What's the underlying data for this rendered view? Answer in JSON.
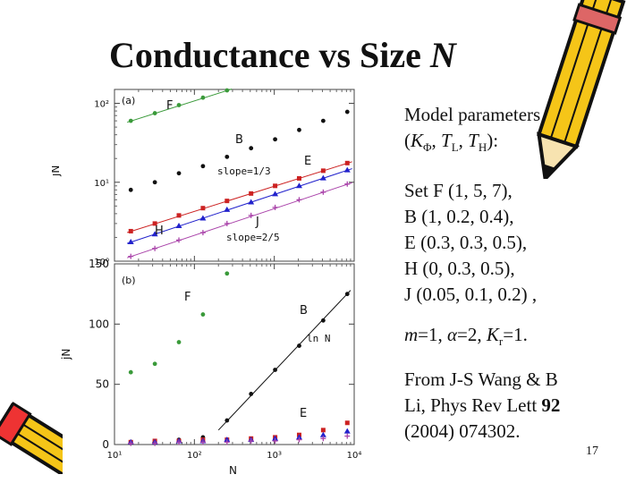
{
  "slide": {
    "title_main": "Conductance vs Size ",
    "title_var": "N",
    "page_number": "17"
  },
  "params": {
    "heading_line1": "Model parameters",
    "heading_line2_prefix": "(",
    "heading_line2_k": "K",
    "heading_line2_phi": "Φ",
    "heading_line2_mid1": ", ",
    "heading_line2_t1": "T",
    "heading_line2_l": "L",
    "heading_line2_mid2": ", ",
    "heading_line2_t2": "T",
    "heading_line2_h": "H",
    "heading_line2_suffix": "):",
    "sets": [
      "Set F (1, 5, 7),",
      "B (1, 0.2, 0.4),",
      "E (0.3, 0.3, 0.5),",
      "H (0, 0.3, 0.5),",
      "J (0.05, 0.1, 0.2) ,"
    ],
    "m_var": "m",
    "m_text": "=1, ",
    "alpha_var": "α",
    "alpha_text": "=2, ",
    "kr_var": "K",
    "kr_sub": "r",
    "kr_text": "=1.",
    "citation_pre": "From J-S Wang & B Li, Phys Rev Lett ",
    "citation_vol": "92",
    "citation_post": " (2004) 074302."
  },
  "chart_data": [
    {
      "panel": "(a)",
      "type": "scatter",
      "scale": "log-log",
      "xlabel": "",
      "ylabel": "jN",
      "xlim": [
        10,
        10000
      ],
      "ylim": [
        1,
        150
      ],
      "ytick_labels": [
        "10⁰",
        "10¹",
        "10²"
      ],
      "annotations": [
        "slope=1/3",
        "slope=2/5"
      ],
      "series": [
        {
          "name": "F",
          "color": "#3a9a3a",
          "marker": "dot",
          "x": [
            16,
            32,
            64,
            128,
            256
          ],
          "y": [
            60,
            75,
            95,
            118,
            146
          ],
          "fit": true
        },
        {
          "name": "B",
          "color": "#111111",
          "marker": "dot",
          "x": [
            16,
            32,
            64,
            128,
            256,
            512,
            1024,
            2048,
            4096,
            8192
          ],
          "y": [
            8,
            10,
            13,
            16,
            21,
            27,
            35,
            46,
            60,
            78
          ],
          "fit": false
        },
        {
          "name": "E",
          "color": "#cc2222",
          "marker": "square",
          "x": [
            16,
            32,
            64,
            128,
            256,
            512,
            1024,
            2048,
            4096,
            8192
          ],
          "y": [
            2.4,
            3.0,
            3.8,
            4.7,
            5.8,
            7.2,
            9.0,
            11.2,
            14.0,
            17.5
          ],
          "fit": true
        },
        {
          "name": "H",
          "color": "#2222cc",
          "marker": "triangle",
          "x": [
            16,
            32,
            64,
            128,
            256,
            512,
            1024,
            2048,
            4096,
            8192
          ],
          "y": [
            1.75,
            2.2,
            2.8,
            3.5,
            4.5,
            5.6,
            7.1,
            9.0,
            11.3,
            14.3
          ],
          "fit": true
        },
        {
          "name": "J",
          "color": "#aa44aa",
          "marker": "plus",
          "x": [
            16,
            32,
            64,
            128,
            256,
            512,
            1024,
            2048,
            4096,
            8192
          ],
          "y": [
            1.15,
            1.45,
            1.85,
            2.3,
            3.0,
            3.8,
            4.8,
            6.0,
            7.5,
            9.5
          ],
          "fit": true
        }
      ]
    },
    {
      "panel": "(b)",
      "type": "scatter",
      "scale": "semilog-x",
      "xlabel": "N",
      "ylabel": "jN",
      "xlim": [
        10,
        10000
      ],
      "ylim": [
        0,
        150
      ],
      "xtick_labels": [
        "10¹",
        "10²",
        "10³",
        "10⁴"
      ],
      "ytick_labels": [
        "0",
        "50",
        "100",
        "150"
      ],
      "annotations": [
        "ln N"
      ],
      "series": [
        {
          "name": "F",
          "color": "#3a9a3a",
          "marker": "dot",
          "x": [
            16,
            32,
            64,
            128,
            256
          ],
          "y": [
            60,
            67,
            85,
            108,
            142
          ]
        },
        {
          "name": "B",
          "color": "#111111",
          "marker": "dot",
          "x": [
            16,
            32,
            64,
            128,
            256,
            512,
            1024,
            2048,
            4096,
            8192
          ],
          "y": [
            2,
            3,
            4,
            6,
            20,
            42,
            62,
            82,
            103,
            125
          ],
          "fit": true
        },
        {
          "name": "E",
          "color": "#cc2222",
          "marker": "square",
          "x": [
            16,
            32,
            64,
            128,
            256,
            512,
            1024,
            2048,
            4096,
            8192
          ],
          "y": [
            2,
            3,
            3,
            4,
            4,
            5,
            6,
            8,
            12,
            18
          ]
        },
        {
          "name": "H",
          "color": "#2222cc",
          "marker": "triangle",
          "x": [
            16,
            32,
            64,
            128,
            256,
            512,
            1024,
            2048,
            4096,
            8192
          ],
          "y": [
            2,
            2,
            3,
            3,
            4,
            4,
            5,
            6,
            8,
            11
          ]
        },
        {
          "name": "J",
          "color": "#aa44aa",
          "marker": "plus",
          "x": [
            16,
            32,
            64,
            128,
            256,
            512,
            1024,
            2048,
            4096,
            8192
          ],
          "y": [
            1,
            1,
            2,
            2,
            2,
            3,
            3,
            4,
            5,
            7
          ]
        }
      ]
    }
  ]
}
